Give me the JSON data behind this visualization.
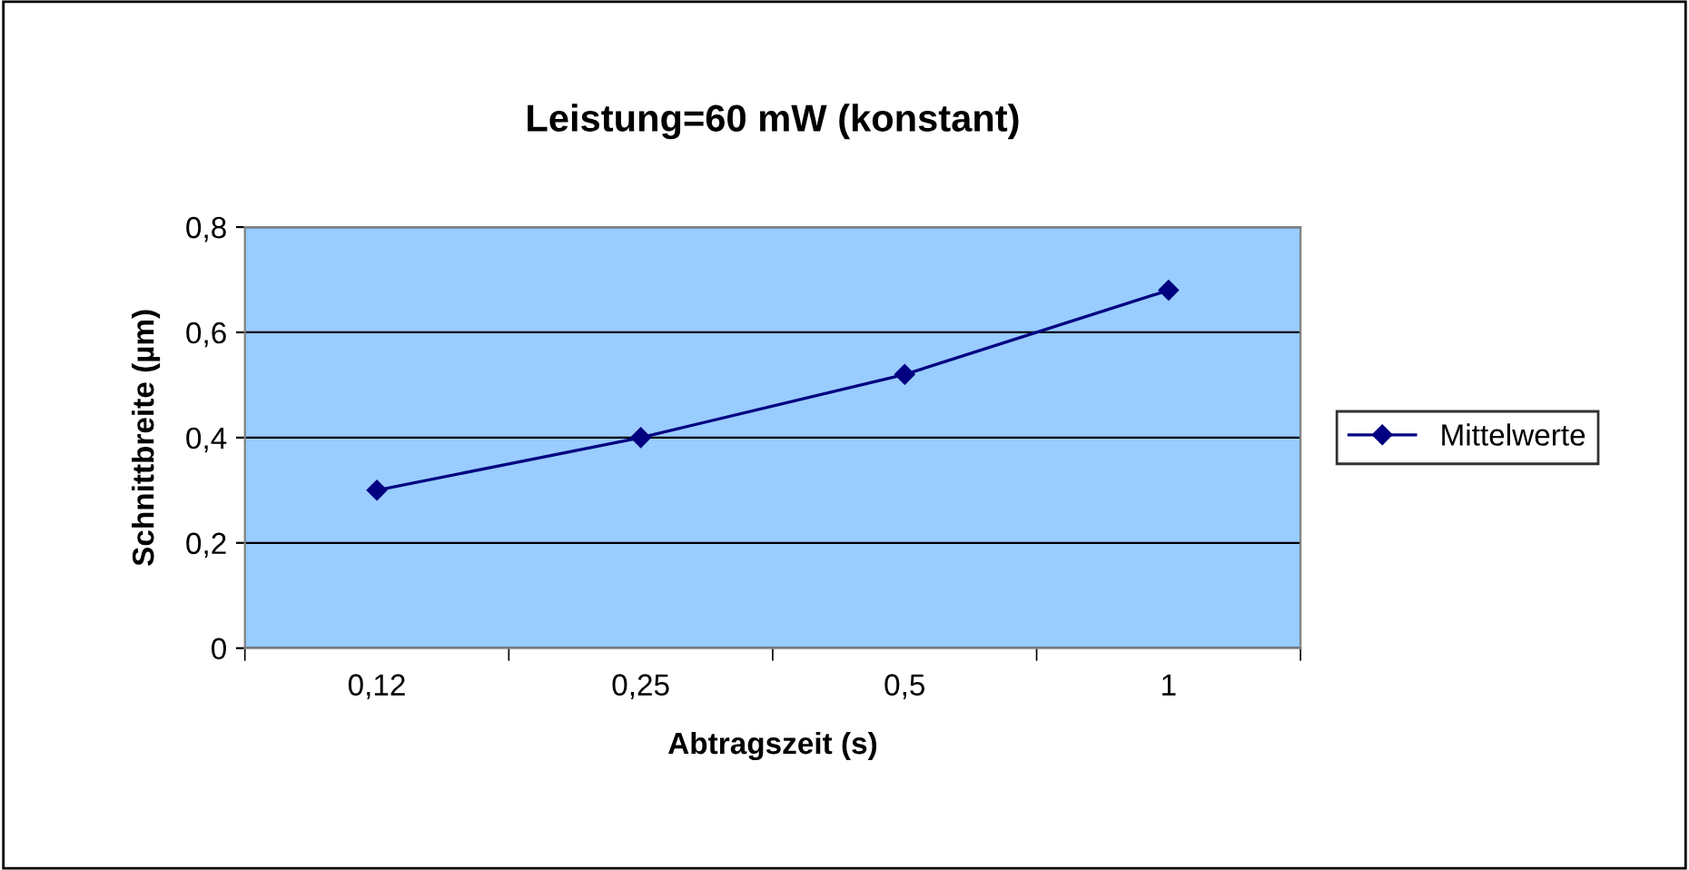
{
  "chart_data": {
    "type": "line",
    "title": "Leistung=60 mW (konstant)",
    "xlabel": "Abtragszeit (s)",
    "ylabel": "Schnittbreite (µm)",
    "categories": [
      "0,12",
      "0,25",
      "0,5",
      "1"
    ],
    "series": [
      {
        "name": "Mittelwerte",
        "color": "#000080",
        "values": [
          0.3,
          0.4,
          0.52,
          0.68
        ]
      }
    ],
    "ylim": [
      0,
      0.8
    ],
    "yticks": [
      {
        "value": 0,
        "label": "0"
      },
      {
        "value": 0.2,
        "label": "0,2"
      },
      {
        "value": 0.4,
        "label": "0,4"
      },
      {
        "value": 0.6,
        "label": "0,6"
      },
      {
        "value": 0.8,
        "label": "0,8"
      }
    ],
    "grid": "y",
    "legend": "right",
    "marker": "diamond",
    "line_style": "solid"
  }
}
